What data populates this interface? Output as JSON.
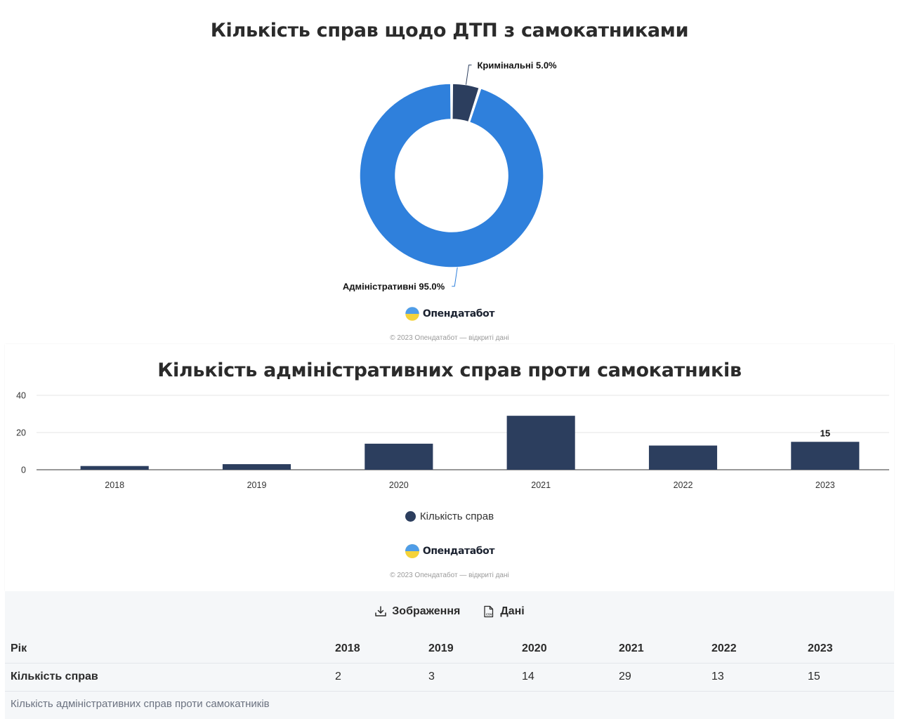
{
  "charts": {
    "donut": {
      "title": "Кількість справ щодо ДТП з самокатниками"
    },
    "bar": {
      "title": "Кількість адміністративних справ проти самокатників",
      "legend_label": "Кількість справ"
    }
  },
  "chart_data": [
    {
      "type": "pie",
      "title": "Кількість справ щодо ДТП з самокатниками",
      "donut": true,
      "slices": [
        {
          "label": "Адміністративні",
          "value": 95.0,
          "display": "Адміністративні 95.0%",
          "color": "#2f80dc"
        },
        {
          "label": "Кримінальні",
          "value": 5.0,
          "display": "Кримінальні 5.0%",
          "color": "#2c3e5e"
        }
      ]
    },
    {
      "type": "bar",
      "title": "Кількість адміністративних справ проти самокатників",
      "categories": [
        "2018",
        "2019",
        "2020",
        "2021",
        "2022",
        "2023"
      ],
      "series": [
        {
          "name": "Кількість справ",
          "values": [
            2,
            3,
            14,
            29,
            13,
            15
          ],
          "color": "#2c3e5e"
        }
      ],
      "data_labels": [
        {
          "category": "2023",
          "text": "15"
        }
      ],
      "yticks": [
        "0",
        "20",
        "40"
      ],
      "ylim": [
        0,
        40
      ],
      "grid": true,
      "legend": "bottom-center"
    }
  ],
  "branding": {
    "logo_text": "Опендатабот",
    "copyright": "© 2023 Опендатабот — відкриті дані"
  },
  "actions": {
    "image_label": "Зображення",
    "data_label": "Дані",
    "csv_tag": "CSV"
  },
  "table": {
    "header_label": "Рік",
    "years": [
      "2018",
      "2019",
      "2020",
      "2021",
      "2022",
      "2023"
    ],
    "row_label": "Кількість справ",
    "values": [
      "2",
      "3",
      "14",
      "29",
      "13",
      "15"
    ],
    "caption": "Кількість адміністративних справ проти самокатників"
  },
  "colors": {
    "accent_blue": "#2f80dc",
    "navy": "#2c3e5e",
    "panel_bg": "#f5f7f9"
  }
}
